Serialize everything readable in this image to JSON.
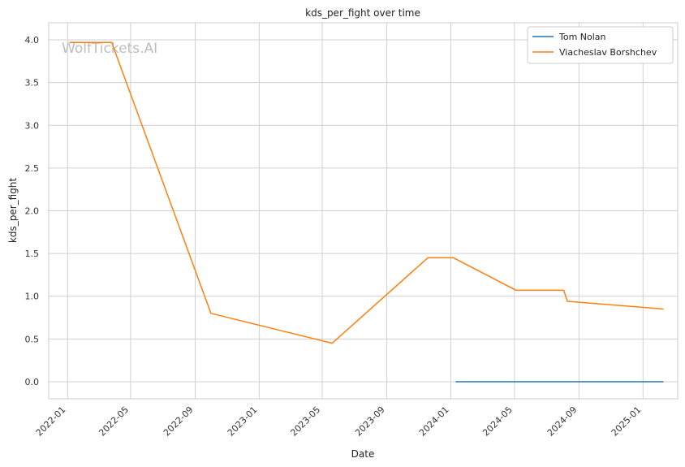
{
  "chart_data": {
    "type": "line",
    "title": "kds_per_fight over time",
    "xlabel": "Date",
    "ylabel": "kds_per_fight",
    "watermark": "WolfTickets.AI",
    "xlim": [
      "2021-11-26",
      "2025-03-08"
    ],
    "ylim": [
      -0.2,
      4.2
    ],
    "x_ticks": [
      "2022-01",
      "2022-05",
      "2022-09",
      "2023-01",
      "2023-05",
      "2023-09",
      "2024-01",
      "2024-05",
      "2024-09",
      "2025-01"
    ],
    "y_ticks": [
      "0.0",
      "0.5",
      "1.0",
      "1.5",
      "2.0",
      "2.5",
      "3.0",
      "3.5",
      "4.0"
    ],
    "grid": true,
    "legend_position": "top-right",
    "series": [
      {
        "name": "Tom Nolan",
        "color": "#1f77b4",
        "points": [
          {
            "x": "2024-01-10",
            "y": 0.0
          },
          {
            "x": "2025-02-09",
            "y": 0.0
          }
        ]
      },
      {
        "name": "Viacheslav Borshchev",
        "color": "#ff7f0e",
        "points": [
          {
            "x": "2022-01-05",
            "y": 3.97
          },
          {
            "x": "2022-03-26",
            "y": 3.97
          },
          {
            "x": "2022-10-01",
            "y": 0.8
          },
          {
            "x": "2023-05-20",
            "y": 0.45
          },
          {
            "x": "2023-11-18",
            "y": 1.45
          },
          {
            "x": "2024-01-06",
            "y": 1.45
          },
          {
            "x": "2024-05-04",
            "y": 1.07
          },
          {
            "x": "2024-08-03",
            "y": 1.07
          },
          {
            "x": "2024-08-10",
            "y": 0.94
          },
          {
            "x": "2025-02-09",
            "y": 0.85
          }
        ]
      }
    ]
  }
}
